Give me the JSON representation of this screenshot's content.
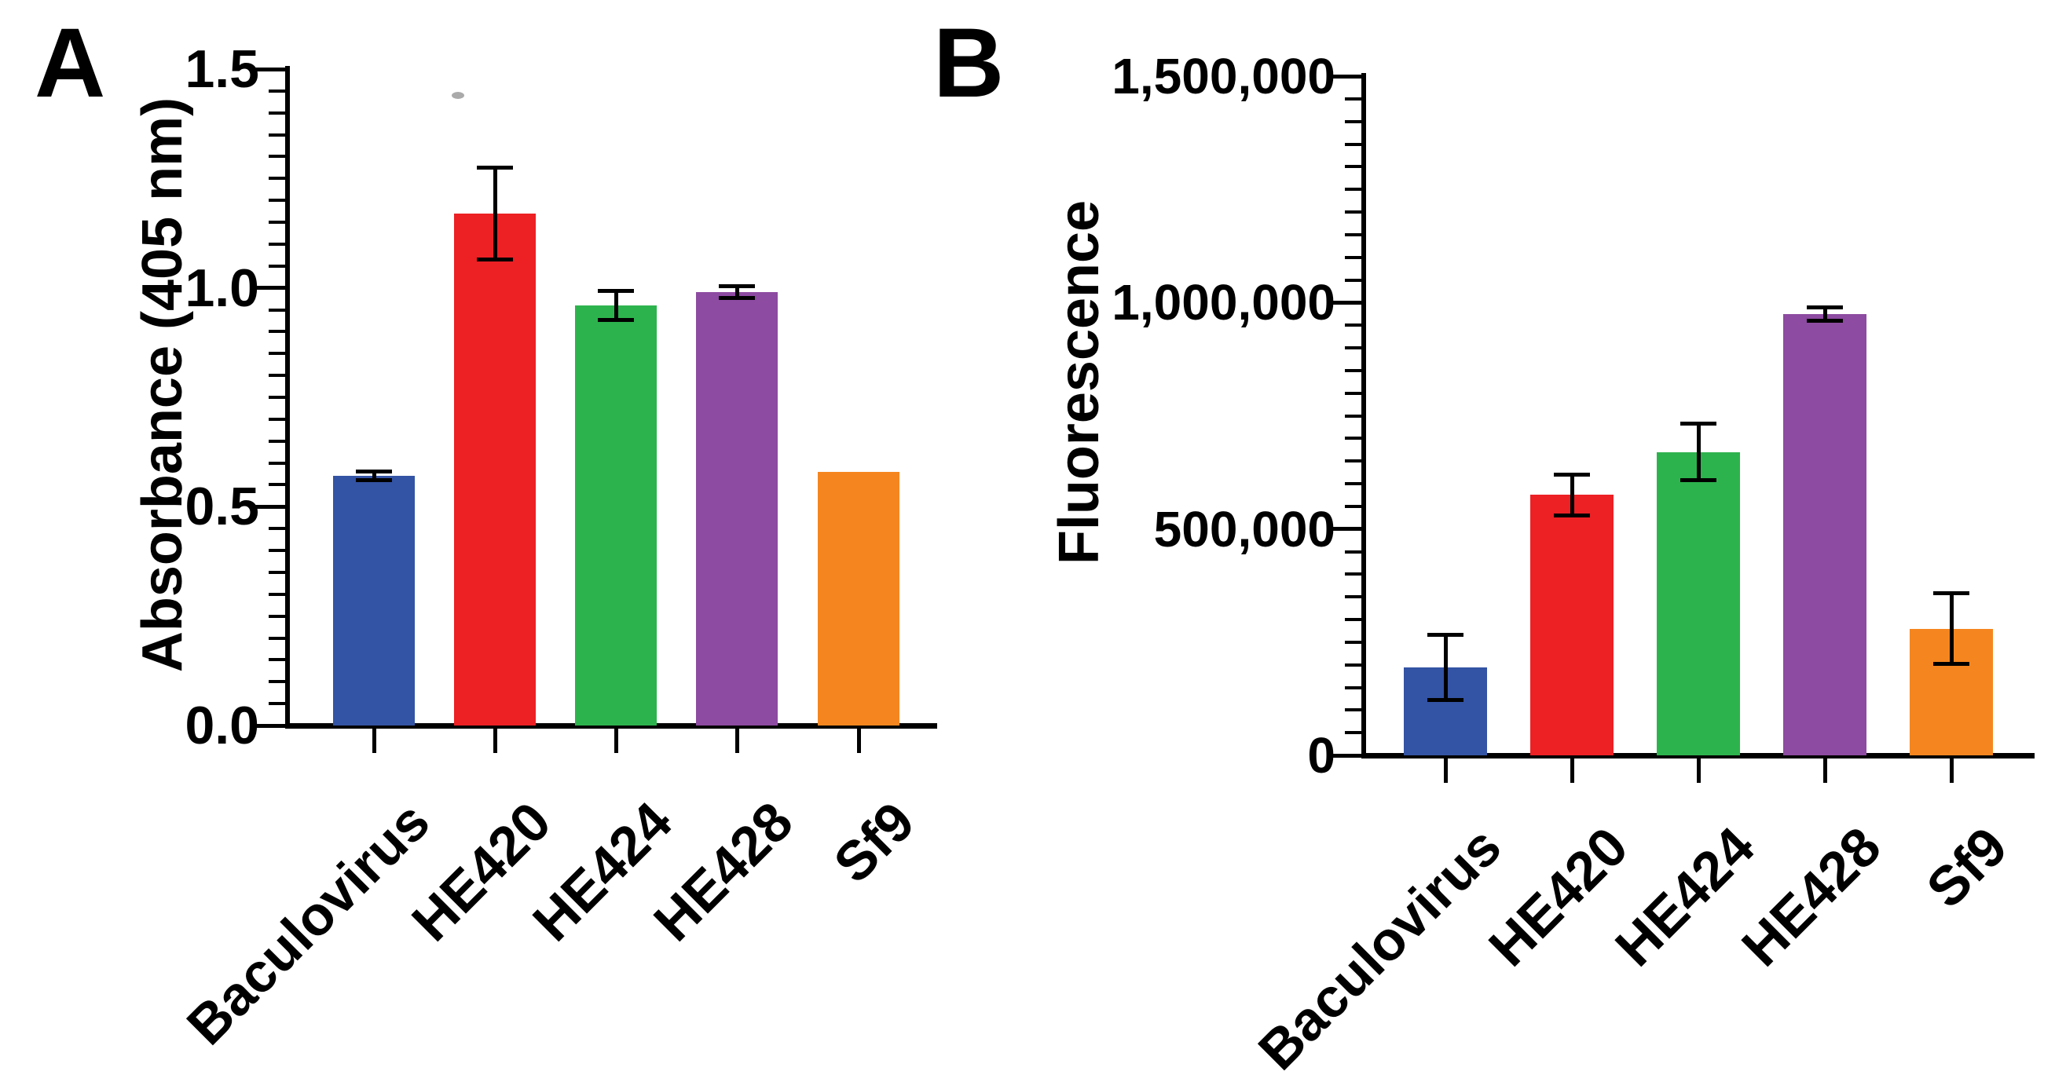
{
  "figure": {
    "panels": [
      {
        "letter": "A"
      },
      {
        "letter": "B"
      }
    ]
  },
  "chart_data": [
    {
      "type": "bar",
      "panel": "A",
      "title": "",
      "xlabel": "",
      "ylabel": "Absorbance (405 nm)",
      "categories": [
        "Baculovirus",
        "HE420",
        "HE424",
        "HE428",
        "Sf9"
      ],
      "values": [
        0.57,
        1.17,
        0.96,
        0.99,
        0.58
      ],
      "errors": [
        0.01,
        0.105,
        0.034,
        0.013,
        0
      ],
      "bar_colors": [
        "#3353a4",
        "#ed2024",
        "#2db34d",
        "#8d4ba1",
        "#f5861f"
      ],
      "ylim": [
        0,
        1.5
      ],
      "yticks": [
        {
          "v": 0,
          "label": "0.0"
        },
        {
          "v": 0.5,
          "label": "0.5"
        },
        {
          "v": 1.0,
          "label": "1.0"
        },
        {
          "v": 1.5,
          "label": "1.5"
        }
      ],
      "minor_tick_step": 0.05,
      "grid": false,
      "legend": "none",
      "error_bar_style": "caps-both-ends",
      "stray_dot": {
        "above_category": "HE420",
        "y": 1.44
      }
    },
    {
      "type": "bar",
      "panel": "B",
      "title": "",
      "xlabel": "",
      "ylabel": "Fluorescence",
      "categories": [
        "Baculovirus",
        "HE420",
        "HE424",
        "HE428",
        "Sf9"
      ],
      "values": [
        195000,
        575000,
        670000,
        975000,
        280000
      ],
      "errors": [
        72000,
        45000,
        62000,
        15000,
        78000
      ],
      "bar_colors": [
        "#3353a4",
        "#ed2024",
        "#2db34d",
        "#8d4ba1",
        "#f5861f"
      ],
      "ylim": [
        0,
        1500000
      ],
      "yticks": [
        {
          "v": 0,
          "label": "0"
        },
        {
          "v": 500000,
          "label": "500,000"
        },
        {
          "v": 1000000,
          "label": "1,000,000"
        },
        {
          "v": 1500000,
          "label": "1,500,000"
        }
      ],
      "minor_tick_step": 50000,
      "grid": false,
      "legend": "none",
      "error_bar_style": "caps-both-ends"
    }
  ]
}
